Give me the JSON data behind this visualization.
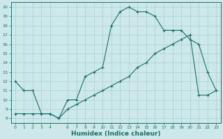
{
  "title": "",
  "xlabel": "Humidex (Indice chaleur)",
  "ylabel": "",
  "bg_color": "#cce8e8",
  "line_color": "#1a6e6a",
  "grid_color": "#aacfcf",
  "xlim": [
    -0.5,
    23.5
  ],
  "ylim": [
    7.5,
    20.5
  ],
  "yticks": [
    8,
    9,
    10,
    11,
    12,
    13,
    14,
    15,
    16,
    17,
    18,
    19,
    20
  ],
  "xticks": [
    0,
    1,
    2,
    3,
    4,
    6,
    7,
    8,
    9,
    10,
    11,
    12,
    13,
    14,
    15,
    16,
    17,
    18,
    19,
    20,
    21,
    22,
    23
  ],
  "line1_x": [
    0,
    1,
    2,
    3,
    4,
    5,
    6,
    7,
    8,
    9,
    10,
    11,
    12,
    13,
    14,
    15,
    16,
    17,
    18,
    19,
    20,
    21,
    22,
    23
  ],
  "line1_y": [
    12.0,
    11.0,
    11.0,
    8.5,
    8.5,
    8.0,
    10.0,
    10.0,
    12.5,
    13.0,
    13.5,
    18.0,
    19.5,
    20.0,
    19.5,
    19.5,
    19.0,
    17.5,
    17.5,
    17.5,
    16.5,
    16.0,
    13.0,
    11.0
  ],
  "line2_x": [
    0,
    1,
    2,
    3,
    4,
    5,
    6,
    7,
    8,
    9,
    10,
    11,
    12,
    13,
    14,
    15,
    16,
    17,
    18,
    19,
    20,
    21,
    22,
    23
  ],
  "line2_y": [
    8.5,
    8.5,
    8.5,
    8.5,
    8.5,
    8.0,
    9.0,
    9.5,
    10.0,
    10.5,
    11.0,
    11.5,
    12.0,
    12.5,
    13.5,
    14.0,
    15.0,
    15.5,
    16.0,
    16.5,
    17.0,
    10.5,
    10.5,
    11.0
  ],
  "marker": "+"
}
